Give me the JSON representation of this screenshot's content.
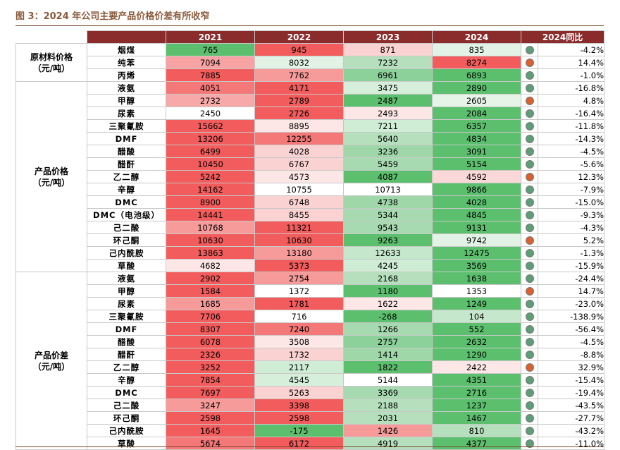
{
  "title": "图 3：2024 年公司主要产品价格价差有所收窄",
  "headers": [
    "2021",
    "2022",
    "2023",
    "2024",
    "2024同比"
  ],
  "groups": [
    {
      "label": "原材料价格\n（元/吨）",
      "rows": [
        {
          "item": "烟煤",
          "v": [
            "765",
            "945",
            "871",
            "835"
          ],
          "c": [
            "#5cbf6e",
            "#f25c5c",
            "#fbd2d2",
            "#e2f3e5"
          ],
          "chg": "-4.2%",
          "dir": "down"
        },
        {
          "item": "纯苯",
          "v": [
            "7094",
            "8032",
            "7232",
            "8274"
          ],
          "c": [
            "#f7a3a3",
            "#e2f3e5",
            "#b6e0bd",
            "#f25c5c"
          ],
          "chg": "14.4%",
          "dir": "up"
        },
        {
          "item": "丙烯",
          "v": [
            "7885",
            "7762",
            "6961",
            "6893"
          ],
          "c": [
            "#f25c5c",
            "#f69a9a",
            "#8cd09a",
            "#5cbf6e"
          ],
          "chg": "-1.0%",
          "dir": "down"
        }
      ]
    },
    {
      "label": "产品价格\n（元/吨）",
      "rows": [
        {
          "item": "液氨",
          "v": [
            "4051",
            "4171",
            "3475",
            "2890"
          ],
          "c": [
            "#f47878",
            "#f25c5c",
            "#d6efdb",
            "#5cbf6e"
          ],
          "chg": "-16.8%",
          "dir": "down"
        },
        {
          "item": "甲醇",
          "v": [
            "2732",
            "2789",
            "2487",
            "2605"
          ],
          "c": [
            "#f7a8a8",
            "#f25c5c",
            "#5cbf6e",
            "#e6f4e8"
          ],
          "chg": "4.8%",
          "dir": "up"
        },
        {
          "item": "尿素",
          "v": [
            "2450",
            "2726",
            "2493",
            "2084"
          ],
          "c": [
            "#ffffff",
            "#f25c5c",
            "#fde6e6",
            "#5cbf6e"
          ],
          "chg": "-16.4%",
          "dir": "down"
        },
        {
          "item": "三聚氰胺",
          "v": [
            "15662",
            "8895",
            "7211",
            "6357"
          ],
          "c": [
            "#f25c5c",
            "#fde6e6",
            "#cfecd5",
            "#5cbf6e"
          ],
          "chg": "-11.8%",
          "dir": "down"
        },
        {
          "item": "DMF",
          "v": [
            "13206",
            "12255",
            "5640",
            "4834"
          ],
          "c": [
            "#f25c5c",
            "#f47878",
            "#b6e0bd",
            "#5cbf6e"
          ],
          "chg": "-14.3%",
          "dir": "down"
        },
        {
          "item": "醋酸",
          "v": [
            "6499",
            "4028",
            "3236",
            "3091"
          ],
          "c": [
            "#f25c5c",
            "#fbd2d2",
            "#9fd7a9",
            "#5cbf6e"
          ],
          "chg": "-4.5%",
          "dir": "down"
        },
        {
          "item": "醋酐",
          "v": [
            "10450",
            "6767",
            "5459",
            "5154"
          ],
          "c": [
            "#f25c5c",
            "#fbd2d2",
            "#a7dab0",
            "#5cbf6e"
          ],
          "chg": "-5.6%",
          "dir": "down"
        },
        {
          "item": "乙二醇",
          "v": [
            "5242",
            "4573",
            "4087",
            "4592"
          ],
          "c": [
            "#f25c5c",
            "#fde6e6",
            "#5cbf6e",
            "#fbd8d8"
          ],
          "chg": "12.3%",
          "dir": "up"
        },
        {
          "item": "辛醇",
          "v": [
            "14162",
            "10755",
            "10713",
            "9866"
          ],
          "c": [
            "#f25c5c",
            "#ffffff",
            "#ffffff",
            "#5cbf6e"
          ],
          "chg": "-7.9%",
          "dir": "down"
        },
        {
          "item": "DMC",
          "v": [
            "8900",
            "6748",
            "4738",
            "4028"
          ],
          "c": [
            "#f25c5c",
            "#fbd2d2",
            "#9fd7a9",
            "#5cbf6e"
          ],
          "chg": "-15.0%",
          "dir": "down"
        },
        {
          "item": "DMC（电池级）",
          "v": [
            "14441",
            "8455",
            "5344",
            "4845"
          ],
          "c": [
            "#f25c5c",
            "#fbd2d2",
            "#a7dab0",
            "#5cbf6e"
          ],
          "chg": "-9.3%",
          "dir": "down"
        },
        {
          "item": "己二酸",
          "v": [
            "10768",
            "11321",
            "9543",
            "9131"
          ],
          "c": [
            "#f69a9a",
            "#f25c5c",
            "#a7dab0",
            "#5cbf6e"
          ],
          "chg": "-4.3%",
          "dir": "down"
        },
        {
          "item": "环己酮",
          "v": [
            "10630",
            "10630",
            "9263",
            "9742"
          ],
          "c": [
            "#f25c5c",
            "#f25c5c",
            "#5cbf6e",
            "#e2f3e5"
          ],
          "chg": "5.2%",
          "dir": "up"
        },
        {
          "item": "己内酰胺",
          "v": [
            "13863",
            "13180",
            "12633",
            "12475"
          ],
          "c": [
            "#f25c5c",
            "#f69a9a",
            "#c5e8cc",
            "#5cbf6e"
          ],
          "chg": "-1.3%",
          "dir": "down"
        },
        {
          "item": "草酸",
          "v": [
            "4682",
            "5373",
            "4245",
            "3569"
          ],
          "c": [
            "#fde6e6",
            "#f25c5c",
            "#cfecd5",
            "#5cbf6e"
          ],
          "chg": "-15.9%",
          "dir": "down"
        }
      ]
    },
    {
      "label": "产品价差\n（元/吨）",
      "rows": [
        {
          "item": "液氨",
          "v": [
            "2902",
            "2754",
            "2168",
            "1638"
          ],
          "c": [
            "#f25c5c",
            "#f69a9a",
            "#b6e0bd",
            "#5cbf6e"
          ],
          "chg": "-24.4%",
          "dir": "down"
        },
        {
          "item": "甲醇",
          "v": [
            "1584",
            "1372",
            "1180",
            "1353"
          ],
          "c": [
            "#f25c5c",
            "#ffffff",
            "#5cbf6e",
            "#ffffff"
          ],
          "chg": "14.7%",
          "dir": "up"
        },
        {
          "item": "尿素",
          "v": [
            "1685",
            "1781",
            "1622",
            "1249"
          ],
          "c": [
            "#f69a9a",
            "#f25c5c",
            "#fde6e6",
            "#5cbf6e"
          ],
          "chg": "-23.0%",
          "dir": "down"
        },
        {
          "item": "三聚氰胺",
          "v": [
            "7706",
            "716",
            "-268",
            "104"
          ],
          "c": [
            "#f25c5c",
            "#ffffff",
            "#5cbf6e",
            "#c5e8cc"
          ],
          "chg": "-138.9%",
          "dir": "down"
        },
        {
          "item": "DMF",
          "v": [
            "8307",
            "7240",
            "1266",
            "552"
          ],
          "c": [
            "#f25c5c",
            "#f47878",
            "#a7dab0",
            "#5cbf6e"
          ],
          "chg": "-56.4%",
          "dir": "down"
        },
        {
          "item": "醋酸",
          "v": [
            "6078",
            "3508",
            "2757",
            "2632"
          ],
          "c": [
            "#f25c5c",
            "#fde6e6",
            "#8cd09a",
            "#5cbf6e"
          ],
          "chg": "-4.5%",
          "dir": "down"
        },
        {
          "item": "醋酐",
          "v": [
            "2326",
            "1732",
            "1414",
            "1290"
          ],
          "c": [
            "#f25c5c",
            "#fbd2d2",
            "#9fd7a9",
            "#5cbf6e"
          ],
          "chg": "-8.8%",
          "dir": "down"
        },
        {
          "item": "乙二醇",
          "v": [
            "3252",
            "2117",
            "1822",
            "2422"
          ],
          "c": [
            "#f25c5c",
            "#cfecd5",
            "#5cbf6e",
            "#fde6e6"
          ],
          "chg": "32.9%",
          "dir": "up"
        },
        {
          "item": "辛醇",
          "v": [
            "7854",
            "4545",
            "5144",
            "4351"
          ],
          "c": [
            "#f25c5c",
            "#d6efdb",
            "#ffffff",
            "#5cbf6e"
          ],
          "chg": "-15.4%",
          "dir": "down"
        },
        {
          "item": "DMC",
          "v": [
            "7697",
            "5263",
            "3369",
            "2716"
          ],
          "c": [
            "#f25c5c",
            "#fbd2d2",
            "#a7dab0",
            "#5cbf6e"
          ],
          "chg": "-19.4%",
          "dir": "down"
        },
        {
          "item": "己二酸",
          "v": [
            "3247",
            "3398",
            "2188",
            "1237"
          ],
          "c": [
            "#f69a9a",
            "#f25c5c",
            "#b6e0bd",
            "#5cbf6e"
          ],
          "chg": "-43.5%",
          "dir": "down"
        },
        {
          "item": "环己酮",
          "v": [
            "2598",
            "2598",
            "2031",
            "1467"
          ],
          "c": [
            "#f25c5c",
            "#f25c5c",
            "#b6e0bd",
            "#5cbf6e"
          ],
          "chg": "-27.7%",
          "dir": "down"
        },
        {
          "item": "己内酰胺",
          "v": [
            "1645",
            "-175",
            "1426",
            "810"
          ],
          "c": [
            "#f25c5c",
            "#5cbf6e",
            "#f69a9a",
            "#b6e0bd"
          ],
          "chg": "-43.2%",
          "dir": "down"
        },
        {
          "item": "草酸",
          "v": [
            "5674",
            "6172",
            "4919",
            "4377"
          ],
          "c": [
            "#f47878",
            "#f25c5c",
            "#b6e0bd",
            "#5cbf6e"
          ],
          "chg": "-11.0%",
          "dir": "down"
        }
      ]
    }
  ]
}
